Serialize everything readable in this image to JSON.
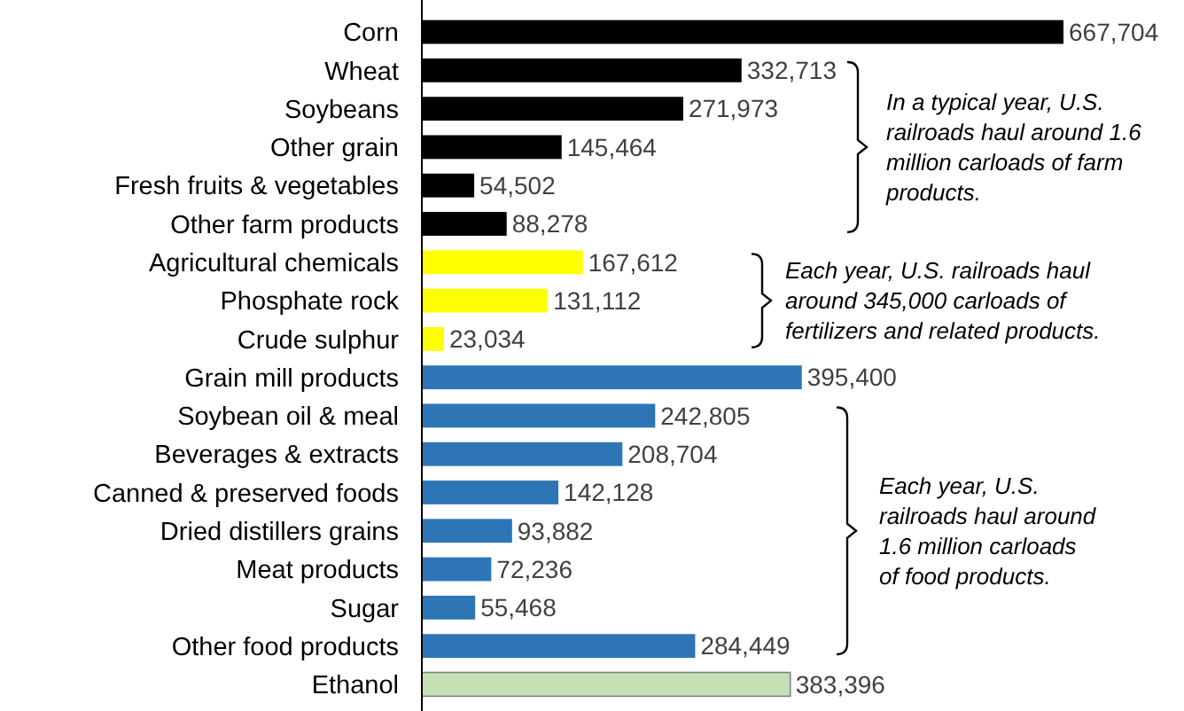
{
  "chart_data": {
    "type": "bar",
    "orientation": "horizontal",
    "value_labels": [
      "667,704",
      "332,713",
      "271,973",
      "145,464",
      "54,502",
      "88,278",
      "167,612",
      "131,112",
      "23,034",
      "395,400",
      "242,805",
      "208,704",
      "142,128",
      "93,882",
      "72,236",
      "55,468",
      "284,449",
      "383,396"
    ],
    "categories": [
      "Corn",
      "Wheat",
      "Soybeans",
      "Other grain",
      "Fresh fruits & vegetables",
      "Other farm products",
      "Agricultural chemicals",
      "Phosphate rock",
      "Crude sulphur",
      "Grain mill products",
      "Soybean oil & meal",
      "Beverages & extracts",
      "Canned & preserved foods",
      "Dried distillers grains",
      "Meat products",
      "Sugar",
      "Other food products",
      "Ethanol"
    ],
    "values": [
      667704,
      332713,
      271973,
      145464,
      54502,
      88278,
      167612,
      131112,
      23034,
      395400,
      242805,
      208704,
      142128,
      93882,
      72236,
      55468,
      284449,
      383396
    ],
    "colors": [
      "#000000",
      "#000000",
      "#000000",
      "#000000",
      "#000000",
      "#000000",
      "#ffff00",
      "#ffff00",
      "#ffff00",
      "#2e75b6",
      "#2e75b6",
      "#2e75b6",
      "#2e75b6",
      "#2e75b6",
      "#2e75b6",
      "#2e75b6",
      "#2e75b6",
      "#c5e0b4"
    ],
    "annotations": [
      "In a typical year, U.S. railroads haul around 1.6 million carloads of farm products.",
      "Each year, U.S. railroads haul around 345,000 carloads of fertilizers and related products.",
      "Each year, U.S. railroads haul around 1.6 million carloads of food products."
    ]
  }
}
